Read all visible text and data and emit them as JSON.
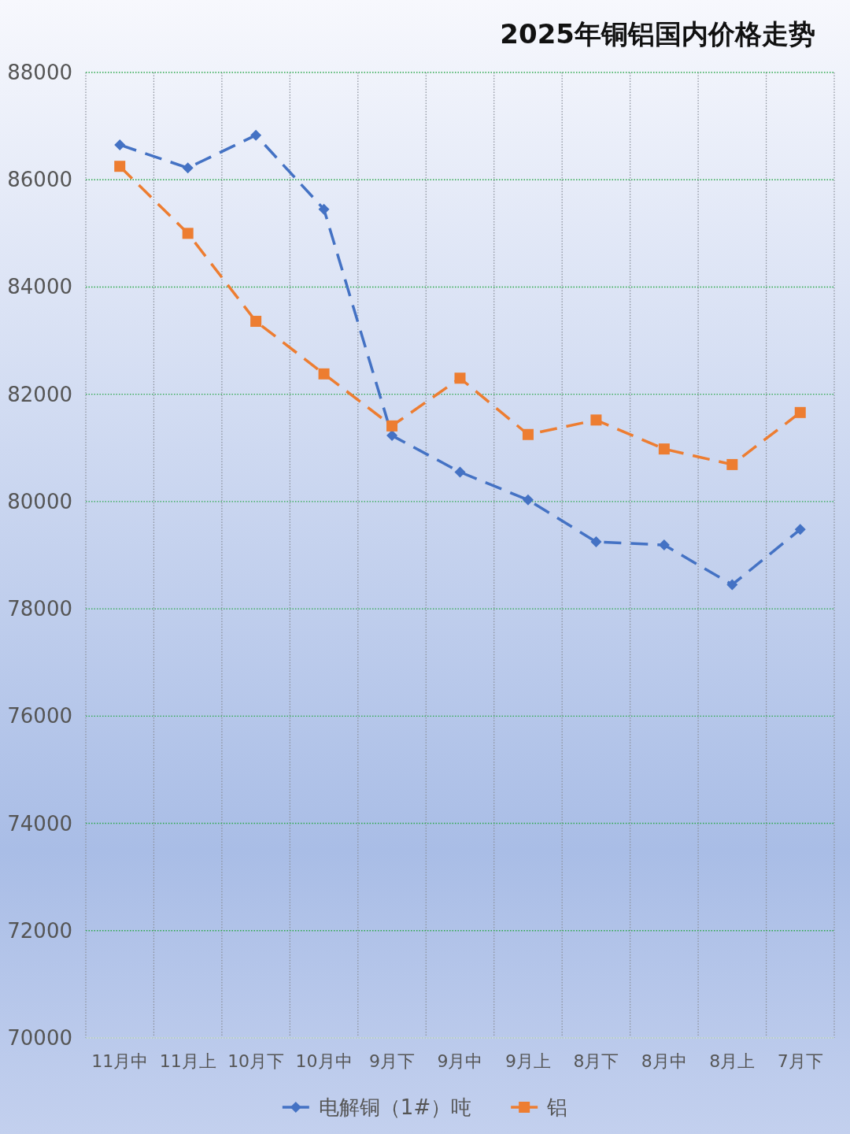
{
  "chart_data": {
    "type": "line",
    "title": "2025年铜铝国内价格走势",
    "categories": [
      "11月中",
      "11月上",
      "10月下",
      "10月中",
      "9月下",
      "9月中",
      "9月上",
      "8月下",
      "8月中",
      "8月上",
      "7月下"
    ],
    "series": [
      {
        "name": "电解铜（1#）吨",
        "color": "#4472c4",
        "marker": "diamond",
        "values": [
          86650,
          86220,
          86830,
          85450,
          81230,
          80550,
          80030,
          79250,
          79190,
          78450,
          79480
        ]
      },
      {
        "name": "铝",
        "color": "#ed7d31",
        "marker": "square",
        "values": [
          86250,
          85000,
          83360,
          82380,
          81410,
          82300,
          81250,
          81520,
          80980,
          80690,
          81660
        ]
      }
    ],
    "ylim": [
      70000,
      88000
    ],
    "yticks": [
      70000,
      72000,
      74000,
      76000,
      78000,
      80000,
      82000,
      84000,
      86000,
      88000
    ],
    "grid": true,
    "legend": "bottom",
    "line_style": "dashed"
  }
}
